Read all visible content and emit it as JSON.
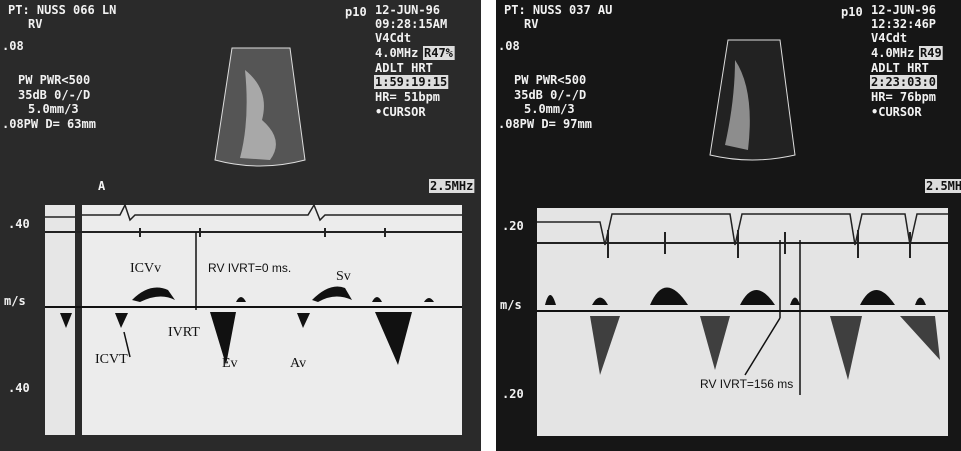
{
  "panels": [
    {
      "patient": "PT: NUSS 066 LN",
      "view": "RV",
      "gain_top": ".08",
      "power": "PW PWR<500",
      "gain": "35dB 0/-/D",
      "depth": "5.0mm/3",
      "gate": ".08PW D= 63mm",
      "zoom": "p10",
      "date": "12-JUN-96",
      "time": "09:28:15AM",
      "probe": "V4Cdt",
      "frequency": "4.0MHz",
      "frame_rate": "R47%",
      "preset": "ADLT HRT",
      "clock": "1:59:19:15",
      "heart_rate": "HR= 51bpm",
      "cursor": "•CURSOR",
      "doppler_freq": "2.5MHz",
      "marker": "A",
      "scale_top": ".40",
      "scale_unit": "m/s",
      "scale_bottom": ".40",
      "annotations": [
        "ICVv",
        "RV IVRT=0 ms.",
        "Sv",
        "IVRT",
        "ICVT",
        "Ev",
        "Av"
      ]
    },
    {
      "patient": "PT: NUSS 037 AU",
      "view": "RV",
      "gain_top": ".08",
      "power": "PW PWR<500",
      "gain": "35dB 0/-/D",
      "depth": "5.0mm/3",
      "gate": ".08PW D= 97mm",
      "zoom": "p10",
      "date": "12-JUN-96",
      "time": "12:32:46P",
      "probe": "V4Cdt",
      "frequency": "4.0MHz",
      "frame_rate": "R49",
      "preset": "ADLT HRT",
      "clock": "2:23:03:0",
      "heart_rate": "HR= 76bpm",
      "cursor": "•CURSOR",
      "doppler_freq": "2.5MH",
      "scale_top": ".20",
      "scale_unit": "m/s",
      "scale_bottom": ".20",
      "annotations": [
        "RV IVRT=156 ms"
      ]
    }
  ]
}
